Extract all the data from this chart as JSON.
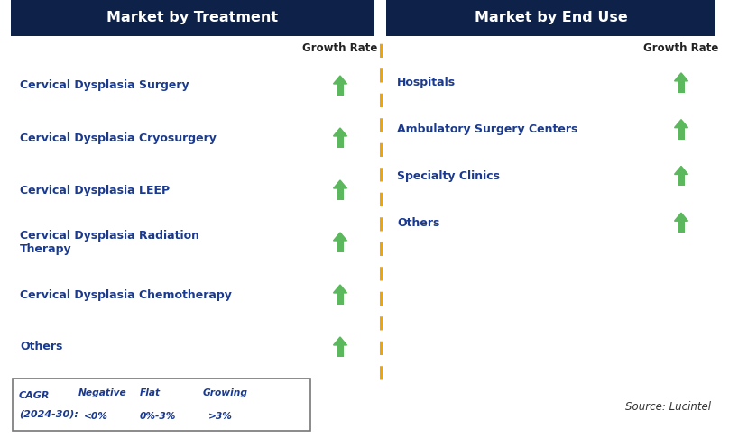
{
  "left_title": "Market by Treatment",
  "right_title": "Market by End Use",
  "header_bg": "#0d2149",
  "header_text_color": "#ffffff",
  "left_items": [
    "Cervical Dysplasia Surgery",
    "Cervical Dysplasia Cryosurgery",
    "Cervical Dysplasia LEEP",
    "Cervical Dysplasia Radiation\nTherapy",
    "Cervical Dysplasia Chemotherapy",
    "Others"
  ],
  "right_items": [
    "Hospitals",
    "Ambulatory Surgery Centers",
    "Specialty Clinics",
    "Others"
  ],
  "item_text_color": "#1a3a8f",
  "growth_rate_color": "#222222",
  "arrow_up_color": "#5cb85c",
  "arrow_down_color": "#cc1100",
  "arrow_flat_color": "#f0a500",
  "growth_rate_label": "Growth Rate",
  "legend_cagr": "CAGR",
  "legend_years": "(2024-30):",
  "legend_negative_label": "Negative",
  "legend_negative_sublabel": "<0%",
  "legend_flat_label": "Flat",
  "legend_flat_sublabel": "0%-3%",
  "legend_growing_label": "Growing",
  "legend_growing_sublabel": ">3%",
  "source_text": "Source: Lucintel",
  "bg_color": "#ffffff",
  "divider_color": "#f0a500",
  "item_fontsize": 9.0,
  "header_fontsize": 11.5,
  "gr_fontsize": 8.5,
  "legend_fontsize": 8.0
}
